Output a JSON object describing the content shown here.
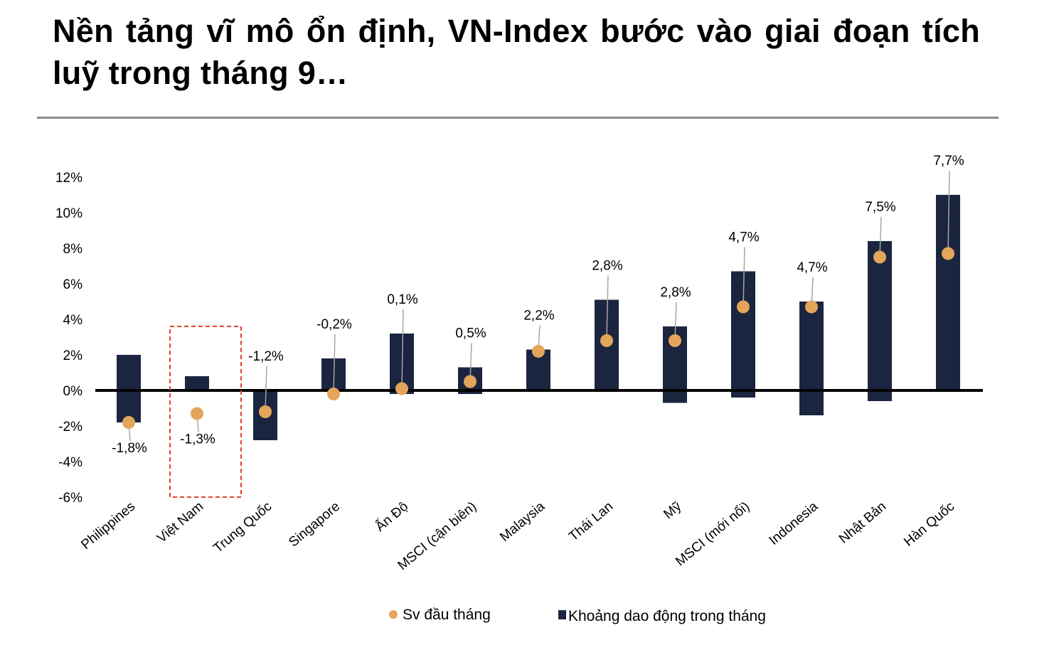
{
  "title": "Nền tảng vĩ mô ổn định, VN-Index bước vào giai đoạn tích luỹ trong tháng 9…",
  "colors": {
    "bar": "#1b2540",
    "dot": "#e3a55a",
    "leader": "#a6a6a6",
    "highlight": "#e0442e",
    "axis": "#000000"
  },
  "chart_data": {
    "type": "bar",
    "categories": [
      "Philippines",
      "Việt Nam",
      "Trung Quốc",
      "Singapore",
      "Ấn Độ",
      "MSCI (cận biên)",
      "Malaysia",
      "Thái Lan",
      "Mỹ",
      "MSCI (mới nổi)",
      "Indonesia",
      "Nhật Bản",
      "Hàn Quốc"
    ],
    "series": [
      {
        "name": "Khoảng dao động trong tháng",
        "type": "range-bar",
        "low": [
          -1.8,
          0,
          -2.8,
          0,
          -0.2,
          -0.2,
          0,
          0,
          -0.7,
          -0.4,
          -1.4,
          -0.6,
          0
        ],
        "high": [
          2.0,
          0.8,
          0,
          1.8,
          3.2,
          1.3,
          2.3,
          5.1,
          3.6,
          6.7,
          5.0,
          8.4,
          11.0
        ]
      },
      {
        "name": "Sv đầu tháng",
        "type": "dot",
        "values": [
          -1.8,
          -1.3,
          -1.2,
          -0.2,
          0.1,
          0.5,
          2.2,
          2.8,
          2.8,
          4.7,
          4.7,
          7.5,
          7.7
        ],
        "labels": [
          "-1,8%",
          "-1,3%",
          "-1,2%",
          "-0,2%",
          "0,1%",
          "0,5%",
          "2,2%",
          "2,8%",
          "2,8%",
          "4,7%",
          "4,7%",
          "7,5%",
          "7,7%"
        ]
      }
    ],
    "label_positions": [
      "below",
      "below",
      "above",
      "above",
      "above",
      "above",
      "above",
      "above",
      "above",
      "above",
      "above",
      "above",
      "above"
    ],
    "ylim": [
      -6,
      12
    ],
    "yticks": [
      "12%",
      "10%",
      "8%",
      "6%",
      "4%",
      "2%",
      "0%",
      "-2%",
      "-4%",
      "-6%"
    ],
    "ytick_values": [
      12,
      10,
      8,
      6,
      4,
      2,
      0,
      -2,
      -4,
      -6
    ],
    "highlight_category": "Việt Nam",
    "grid": false,
    "legend_position": "bottom"
  },
  "legend": {
    "dot_label": "Sv đầu tháng",
    "bar_label": "Khoảng dao động trong tháng"
  }
}
